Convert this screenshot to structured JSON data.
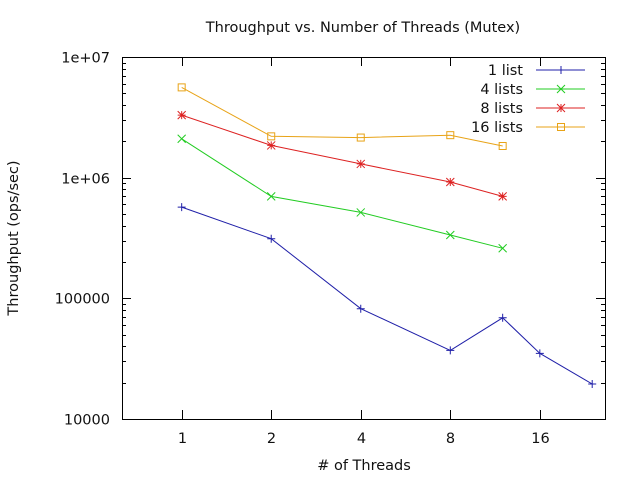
{
  "chart_data": {
    "type": "line",
    "title": "Throughput vs. Number of Threads (Mutex)",
    "xlabel": "# of Threads",
    "ylabel": "Throughput (ops/sec)",
    "x_scale": "log2",
    "y_scale": "log10",
    "xlim": [
      0.63,
      26.5
    ],
    "ylim": [
      10000,
      10000000
    ],
    "x_ticks": [
      1,
      2,
      4,
      8,
      16
    ],
    "x_tick_labels": [
      "1",
      "2",
      "4",
      "8",
      "16"
    ],
    "y_ticks": [
      10000,
      100000,
      1000000,
      10000000
    ],
    "y_tick_labels": [
      "10000",
      "100000",
      "1e+06",
      "1e+07"
    ],
    "legend_position": "top-right",
    "grid": false,
    "series": [
      {
        "name": "1 list",
        "color": "#1f1fa8",
        "marker": "plus",
        "x": [
          1,
          2,
          4,
          8,
          12,
          16,
          24
        ],
        "y": [
          570000,
          312000,
          82000,
          37000,
          69000,
          35000,
          19500
        ]
      },
      {
        "name": "4 lists",
        "color": "#22cc22",
        "marker": "cross",
        "x": [
          1,
          2,
          4,
          8,
          12
        ],
        "y": [
          2100000,
          700000,
          515000,
          335000,
          260000
        ]
      },
      {
        "name": "8 lists",
        "color": "#dd2222",
        "marker": "star",
        "x": [
          1,
          2,
          4,
          8,
          12
        ],
        "y": [
          3300000,
          1850000,
          1300000,
          920000,
          700000
        ]
      },
      {
        "name": "16 lists",
        "color": "#e8a317",
        "marker": "square",
        "x": [
          1,
          2,
          4,
          8,
          12
        ],
        "y": [
          5600000,
          2200000,
          2150000,
          2250000,
          1830000
        ]
      }
    ]
  }
}
